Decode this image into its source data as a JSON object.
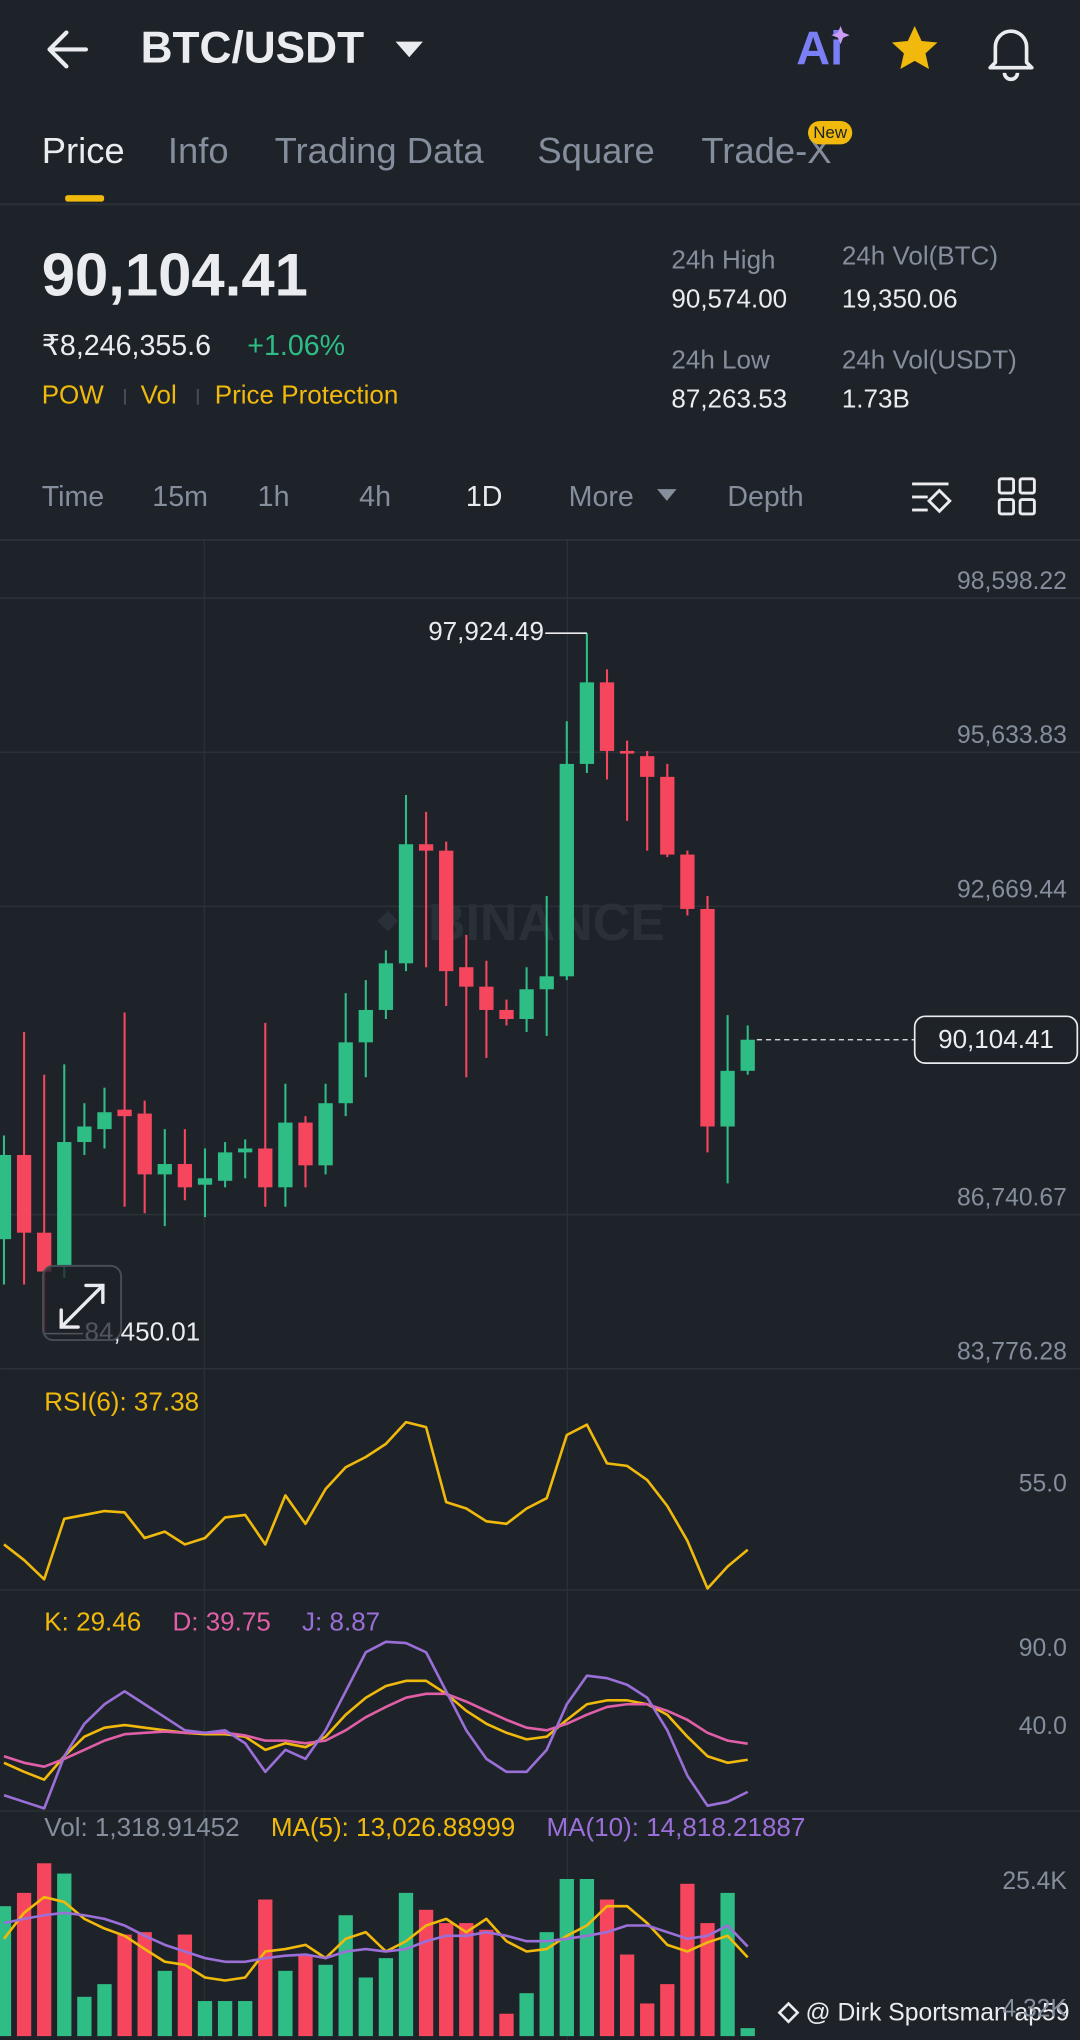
{
  "header": {
    "pair": "BTC/USDT",
    "ai": "Ai"
  },
  "tabs": {
    "items": [
      "Price",
      "Info",
      "Trading Data",
      "Square",
      "Trade-X"
    ],
    "badge": "New"
  },
  "price": {
    "last": "90,104.41",
    "fiat": "₹8,246,355.6",
    "change": "+1.06%",
    "tags": [
      "POW",
      "Vol",
      "Price Protection"
    ]
  },
  "stats": [
    {
      "label": "24h High",
      "value": "90,574.00"
    },
    {
      "label": "24h Vol(BTC)",
      "value": "19,350.06"
    },
    {
      "label": "24h Low",
      "value": "87,263.53"
    },
    {
      "label": "24h Vol(USDT)",
      "value": "1.73B"
    }
  ],
  "intervals": [
    "Time",
    "15m",
    "1h",
    "4h",
    "1D",
    "More",
    "Depth"
  ],
  "watermark": "BINANCE",
  "credit": "@ Dirk Sportsman ap59",
  "chart_data": [
    {
      "type": "candlestick",
      "open": [
        86268,
        87887,
        86392,
        85770,
        88136,
        88385,
        88759,
        88684,
        87514,
        87713,
        87315,
        87390,
        87937,
        88012,
        87265,
        88510,
        87688,
        88883,
        90054,
        90677,
        91574,
        93865,
        93741,
        91499,
        91125,
        90677,
        90503,
        91075,
        91324,
        95410,
        96979,
        95659,
        95559,
        95161,
        93666,
        92620,
        88435,
        89506
      ],
      "high": [
        88261,
        90253,
        89431,
        89630,
        88883,
        89182,
        90627,
        88933,
        88385,
        88385,
        88012,
        88136,
        88186,
        90428,
        89257,
        88634,
        89257,
        91001,
        91250,
        91823,
        94812,
        94488,
        93915,
        92122,
        91624,
        90876,
        91499,
        92869,
        96232,
        97924.49,
        97228,
        95858,
        95659,
        95410,
        93741,
        92869,
        90577,
        90378
      ],
      "low": [
        85396,
        85396,
        84450.01,
        85521,
        87887,
        88012,
        86891,
        86767,
        86518,
        87016,
        86692,
        87265,
        87439,
        86891,
        86891,
        87265,
        87514,
        88634,
        89382,
        90503,
        91424,
        91499,
        90752,
        89382,
        89755,
        90378,
        90253,
        90179,
        91250,
        95235,
        95111,
        94314,
        93741,
        93616,
        92495,
        87937,
        87340,
        89431
      ],
      "close": [
        87887,
        86392,
        85645,
        88136,
        88435,
        88709,
        88634,
        87514,
        87713,
        87265,
        87439,
        87937,
        88012,
        87265,
        88510,
        87688,
        88883,
        90054,
        90677,
        91574,
        93865,
        93741,
        91424,
        91125,
        90677,
        90503,
        91075,
        91324,
        95410,
        96979,
        95659,
        95609,
        95161,
        93666,
        92620,
        88435,
        89506,
        90104.41
      ],
      "up_color": "#2ebd85",
      "down_color": "#f6465d",
      "ylim": [
        83776.28,
        99719
      ],
      "yticks": [
        {
          "value": 98598.22,
          "label": "98,598.22"
        },
        {
          "value": 95633.83,
          "label": "95,633.83"
        },
        {
          "value": 92669.44,
          "label": "92,669.44"
        },
        {
          "value": 86740.67,
          "label": "86,740.67"
        },
        {
          "value": 83776.28,
          "label": "83,776.28"
        }
      ],
      "grid": true,
      "last_price": {
        "value": 90104.41,
        "label": "90,104.41"
      },
      "high_label": {
        "value": 97924.49,
        "label": "97,924.49"
      },
      "low_label": {
        "value": 84450.01,
        "label": "84,450.01"
      }
    },
    {
      "type": "line",
      "series": [
        {
          "label": "RSI(6): 37.38",
          "color": "#f0b90b",
          "values": [
            39.3,
            33.7,
            26.8,
            48.5,
            49.9,
            51.3,
            50.8,
            41.6,
            43.9,
            39.3,
            41.6,
            49.0,
            49.9,
            39.3,
            56.9,
            46.7,
            59.2,
            67.0,
            70.7,
            75.4,
            83.2,
            81.4,
            54.5,
            52.2,
            47.6,
            46.7,
            52.2,
            55.9,
            78.6,
            82.3,
            68.4,
            67.5,
            62.4,
            53.1,
            40.6,
            23.5,
            31.4,
            37.38
          ]
        }
      ],
      "ylim": [
        23,
        101
      ],
      "yticks": [
        {
          "value": 55,
          "label": "55.0"
        }
      ]
    },
    {
      "type": "line",
      "series": [
        {
          "label": "K: 29.46",
          "color": "#f0b90b",
          "values": [
            27.5,
            21.7,
            16.7,
            31.7,
            44.2,
            50,
            51.7,
            50,
            48.3,
            46.7,
            45.8,
            45.8,
            44.2,
            35.8,
            40,
            37.5,
            44.2,
            58.3,
            69.2,
            76.7,
            80,
            80,
            71.7,
            60.8,
            52.5,
            46.7,
            42.5,
            44.2,
            55,
            65,
            67.5,
            67.5,
            65,
            58.3,
            44.2,
            31.7,
            27.5,
            29.46
          ]
        },
        {
          "label": "D: 39.75",
          "color": "#e05fa8",
          "values": [
            31.7,
            27.5,
            25,
            30,
            35.8,
            41.7,
            45.8,
            46.7,
            47.5,
            46.7,
            46.7,
            46.7,
            45,
            41.7,
            41.7,
            40,
            41.7,
            48.3,
            56.7,
            63.3,
            69.2,
            71.7,
            71.7,
            66.7,
            60.8,
            55,
            50,
            48.3,
            52.5,
            58.3,
            63.3,
            65,
            65,
            60.8,
            55,
            46.7,
            41.7,
            39.75
          ]
        },
        {
          "label": "J: 8.87",
          "color": "#9b6fd8",
          "values": [
            6.7,
            2.5,
            -1.7,
            31.7,
            52.5,
            65,
            73.3,
            65,
            56.7,
            48.3,
            46.7,
            48.3,
            40,
            21.7,
            35.8,
            30,
            48.3,
            73.3,
            98.3,
            105,
            104.2,
            98.3,
            73.3,
            48.3,
            30,
            21.7,
            21.7,
            35.8,
            65,
            83.3,
            81.7,
            77.5,
            69.2,
            48.3,
            19.2,
            0,
            2.5,
            8.87
          ]
        }
      ],
      "ylim": [
        -3.4,
        133.3
      ],
      "yticks": [
        {
          "value": 90,
          "label": "90.0"
        },
        {
          "value": 40,
          "label": "40.0"
        }
      ]
    },
    {
      "type": "bar",
      "label": "Vol: 1,318.91452",
      "values": [
        21500,
        23700,
        28600,
        26900,
        6500,
        8600,
        16800,
        17200,
        10800,
        16800,
        5800,
        5800,
        5800,
        22600,
        10800,
        13300,
        11800,
        20000,
        9700,
        12900,
        23700,
        20900,
        18700,
        18700,
        17600,
        3700,
        7100,
        17200,
        26000,
        26000,
        22600,
        13500,
        5400,
        8600,
        25200,
        18700,
        23700,
        1318.91452
      ],
      "series": [
        {
          "label": "MA(5): 13,026.88999",
          "color": "#f0b90b",
          "values": [
            16100,
            20400,
            23000,
            22200,
            19400,
            17800,
            16600,
            14400,
            12300,
            11800,
            9700,
            9200,
            9700,
            14000,
            14400,
            15100,
            12900,
            16100,
            17200,
            14000,
            15700,
            18300,
            19400,
            17200,
            19400,
            15700,
            14000,
            14400,
            16600,
            18300,
            21500,
            21500,
            18700,
            15100,
            14000,
            15500,
            16600,
            13026.88999
          ]
        },
        {
          "label": "MA(10): 14,818.21887",
          "color": "#9b6fd8",
          "values": [
            18700,
            19400,
            20000,
            20400,
            20000,
            19400,
            18300,
            16600,
            15100,
            14000,
            12900,
            12300,
            12300,
            12900,
            13300,
            13500,
            12900,
            14000,
            14400,
            14000,
            14400,
            15700,
            16600,
            16600,
            17200,
            16600,
            15700,
            15700,
            16100,
            16600,
            17200,
            18300,
            18300,
            17200,
            16100,
            16600,
            18300,
            14818.21887
          ]
        }
      ],
      "ylim": [
        0,
        36600
      ],
      "yticks": [
        {
          "value": 25400,
          "label": "25.4K"
        },
        {
          "value": 4320,
          "label": "4.32K"
        }
      ]
    }
  ]
}
